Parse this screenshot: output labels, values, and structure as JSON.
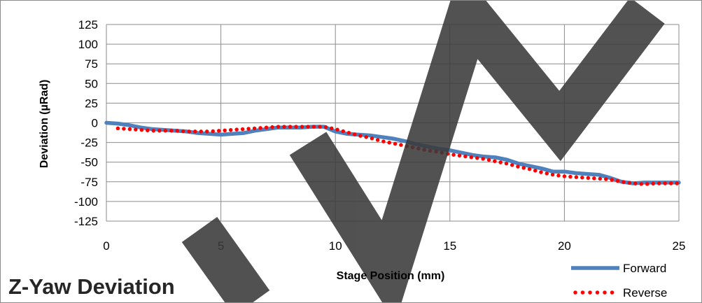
{
  "chart_data": {
    "type": "line",
    "title": "Z-Yaw Deviation",
    "xlabel": "Stage Position (mm)",
    "ylabel": "Deviation (µRad)",
    "xlim": [
      0,
      25
    ],
    "ylim": [
      -125,
      125
    ],
    "xticks": [
      "0",
      "5",
      "10",
      "15",
      "20",
      "25"
    ],
    "yticks": [
      "125",
      "100",
      "75",
      "50",
      "25",
      "0",
      "-25",
      "-50",
      "-75",
      "-100",
      "-125"
    ],
    "grid": true,
    "legend_position": "bottom-right",
    "series": [
      {
        "name": "Forward",
        "style": "solid",
        "color": "#4f81bd",
        "x": [
          0,
          0.5,
          1,
          1.5,
          2,
          2.5,
          3,
          3.5,
          4,
          4.5,
          5,
          5.5,
          6,
          6.5,
          7,
          7.5,
          8,
          8.5,
          9,
          9.5,
          10,
          10.5,
          11,
          11.5,
          12,
          12.5,
          13,
          13.5,
          14,
          14.5,
          15,
          15.5,
          16,
          16.5,
          17,
          17.5,
          18,
          18.5,
          19,
          19.5,
          20,
          20.5,
          21,
          21.5,
          22,
          22.5,
          23,
          23.5,
          24,
          24.5,
          25
        ],
        "values": [
          0,
          -1,
          -3,
          -6,
          -8,
          -9,
          -10,
          -11,
          -13,
          -14,
          -15,
          -14,
          -13,
          -10,
          -8,
          -6,
          -6,
          -6,
          -5,
          -5,
          -11,
          -14,
          -15,
          -16,
          -18,
          -20,
          -23,
          -27,
          -30,
          -33,
          -35,
          -38,
          -41,
          -43,
          -44,
          -47,
          -52,
          -55,
          -58,
          -62,
          -62,
          -64,
          -65,
          -66,
          -70,
          -75,
          -77,
          -76,
          -76,
          -76,
          -76
        ]
      },
      {
        "name": "Reverse",
        "style": "dotted",
        "color": "#ff0000",
        "x": [
          0.5,
          1,
          1.5,
          2,
          2.5,
          3,
          3.5,
          4,
          4.5,
          5,
          5.5,
          6,
          6.5,
          7,
          7.5,
          8,
          8.5,
          9,
          9.5,
          10,
          10.5,
          11,
          11.5,
          12,
          12.5,
          13,
          13.5,
          14,
          14.5,
          15,
          15.5,
          16,
          16.5,
          17,
          17.5,
          18,
          18.5,
          19,
          19.5,
          20,
          20.5,
          21,
          21.5,
          22,
          22.5,
          23,
          23.5,
          24,
          24.5,
          25
        ],
        "values": [
          -7,
          -8,
          -9,
          -10,
          -10,
          -10,
          -11,
          -11,
          -11,
          -10,
          -9,
          -8,
          -7,
          -6,
          -5,
          -5,
          -5,
          -5,
          -5,
          -8,
          -12,
          -16,
          -19,
          -23,
          -26,
          -29,
          -32,
          -35,
          -37,
          -40,
          -42,
          -44,
          -46,
          -49,
          -52,
          -56,
          -59,
          -63,
          -66,
          -68,
          -69,
          -70,
          -71,
          -72,
          -75,
          -77,
          -78,
          -77,
          -77,
          -77
        ]
      }
    ]
  }
}
